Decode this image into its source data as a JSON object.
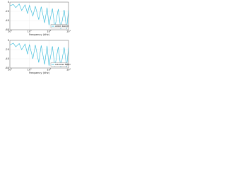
{
  "chart_data": [
    {
      "type": "line",
      "x_label": "Frequency (kHz)",
      "log_x": true,
      "grid": true,
      "legend": "lower right",
      "xlim": [
        1,
        1000
      ],
      "xticks": [
        {
          "value": 1,
          "label": "10⁰"
        },
        {
          "value": 10,
          "label": "10¹"
        },
        {
          "value": 100,
          "label": "10²"
        },
        {
          "value": 1000,
          "label": "10³"
        }
      ],
      "ylim": [
        -60,
        0
      ],
      "yticks": [
        0,
        -20,
        -40,
        -60
      ],
      "x": [
        1,
        1.5,
        2,
        3,
        4,
        6,
        8,
        10,
        15,
        20,
        30,
        40,
        60,
        80,
        100,
        150,
        200,
        300,
        400,
        600,
        800,
        1000
      ],
      "series": [
        {
          "name": "wide band",
          "color": "#2bb7d8",
          "values": [
            -8,
            -5,
            -12,
            -4,
            -18,
            -6,
            -25,
            -7,
            -30,
            -9,
            -38,
            -10,
            -45,
            -12,
            -50,
            -14,
            -55,
            -15,
            -58,
            -17,
            -58,
            -18
          ]
        }
      ]
    },
    {
      "type": "line",
      "x_label": "Frequency (kHz)",
      "log_x": true,
      "grid": true,
      "legend": "lower right",
      "xlim": [
        1,
        1000
      ],
      "xticks": [
        {
          "value": 1,
          "label": "10⁰"
        },
        {
          "value": 10,
          "label": "10¹"
        },
        {
          "value": 100,
          "label": "10²"
        },
        {
          "value": 1000,
          "label": "10³"
        }
      ],
      "ylim": [
        -60,
        0
      ],
      "yticks": [
        0,
        -20,
        -40,
        -60
      ],
      "x": [
        1,
        1.5,
        2,
        3,
        4,
        6,
        8,
        10,
        15,
        20,
        30,
        40,
        60,
        80,
        100,
        150,
        200,
        300,
        400,
        600,
        800,
        1000
      ],
      "series": [
        {
          "name": "narrow band",
          "color": "#2bb7d8",
          "values": [
            -10,
            -6,
            -14,
            -7,
            -20,
            -8,
            -30,
            -9,
            -40,
            -10,
            -48,
            -11,
            -52,
            -12,
            -55,
            -13,
            -57,
            -14,
            -58,
            -15,
            -58,
            -16
          ]
        }
      ]
    }
  ]
}
